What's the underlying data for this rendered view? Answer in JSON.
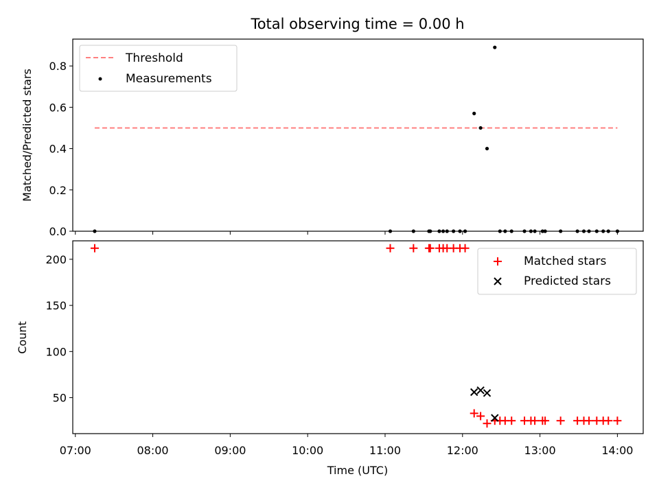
{
  "chart_data": [
    {
      "type": "scatter",
      "title": "Total observing time = 0.00 h",
      "xlabel": "",
      "ylabel": "Matched/Predicted stars",
      "xlim": [
        "06:58",
        "14:20"
      ],
      "ylim": [
        0,
        0.93
      ],
      "yticks": [
        0.0,
        0.2,
        0.4,
        0.6,
        0.8
      ],
      "ytick_labels": [
        "0.0",
        "0.2",
        "0.4",
        "0.6",
        "0.8"
      ],
      "legend": {
        "placement": "top-left",
        "entries": [
          "Threshold",
          "Measurements"
        ]
      },
      "series": [
        {
          "name": "Threshold",
          "type": "line",
          "color": "#ff7f7f",
          "style": "dashed",
          "x": [
            "07:15",
            "14:00"
          ],
          "y": [
            0.5,
            0.5
          ]
        },
        {
          "name": "Measurements",
          "type": "scatter",
          "color": "#000000",
          "marker": "dot",
          "x": [
            "07:15",
            "11:04",
            "11:22",
            "11:34",
            "11:35",
            "11:42",
            "11:45",
            "11:48",
            "11:53",
            "11:58",
            "12:02",
            "12:09",
            "12:14",
            "12:19",
            "12:25",
            "12:29",
            "12:33",
            "12:38",
            "12:48",
            "12:53",
            "12:56",
            "13:02",
            "13:04",
            "13:16",
            "13:29",
            "13:34",
            "13:38",
            "13:44",
            "13:49",
            "13:53",
            "14:00"
          ],
          "y": [
            0,
            0,
            0,
            0,
            0,
            0,
            0,
            0,
            0,
            0,
            0,
            0.57,
            0.5,
            0.4,
            0.89,
            0,
            0,
            0,
            0,
            0,
            0,
            0,
            0,
            0,
            0,
            0,
            0,
            0,
            0,
            0,
            0
          ]
        }
      ]
    },
    {
      "type": "scatter",
      "title": "",
      "xlabel": "Time (UTC)",
      "ylabel": "Count",
      "xlim": [
        "06:58",
        "14:20"
      ],
      "ylim": [
        11,
        220
      ],
      "xtick_labels": [
        "07:00",
        "08:00",
        "09:00",
        "10:00",
        "11:00",
        "12:00",
        "13:00",
        "14:00"
      ],
      "yticks": [
        50,
        100,
        150,
        200
      ],
      "ytick_labels": [
        "50",
        "100",
        "150",
        "200"
      ],
      "legend": {
        "placement": "top-right",
        "entries": [
          "Matched stars",
          "Predicted stars"
        ]
      },
      "series": [
        {
          "name": "Matched stars",
          "type": "scatter",
          "color": "#ff0000",
          "marker": "plus",
          "x": [
            "07:15",
            "11:04",
            "11:22",
            "11:34",
            "11:35",
            "11:42",
            "11:45",
            "11:48",
            "11:53",
            "11:58",
            "12:02",
            "12:09",
            "12:14",
            "12:19",
            "12:25",
            "12:29",
            "12:33",
            "12:38",
            "12:48",
            "12:53",
            "12:56",
            "13:02",
            "13:04",
            "13:16",
            "13:29",
            "13:34",
            "13:38",
            "13:44",
            "13:49",
            "13:53",
            "14:00"
          ],
          "y": [
            212,
            212,
            212,
            212,
            212,
            212,
            212,
            212,
            212,
            212,
            212,
            33,
            30,
            22,
            25,
            25,
            25,
            25,
            25,
            25,
            25,
            25,
            25,
            25,
            25,
            25,
            25,
            25,
            25,
            25,
            25
          ]
        },
        {
          "name": "Predicted stars",
          "type": "scatter",
          "color": "#000000",
          "marker": "x",
          "x": [
            "12:09",
            "12:14",
            "12:19",
            "12:25"
          ],
          "y": [
            56,
            58,
            55,
            28
          ]
        }
      ]
    }
  ]
}
